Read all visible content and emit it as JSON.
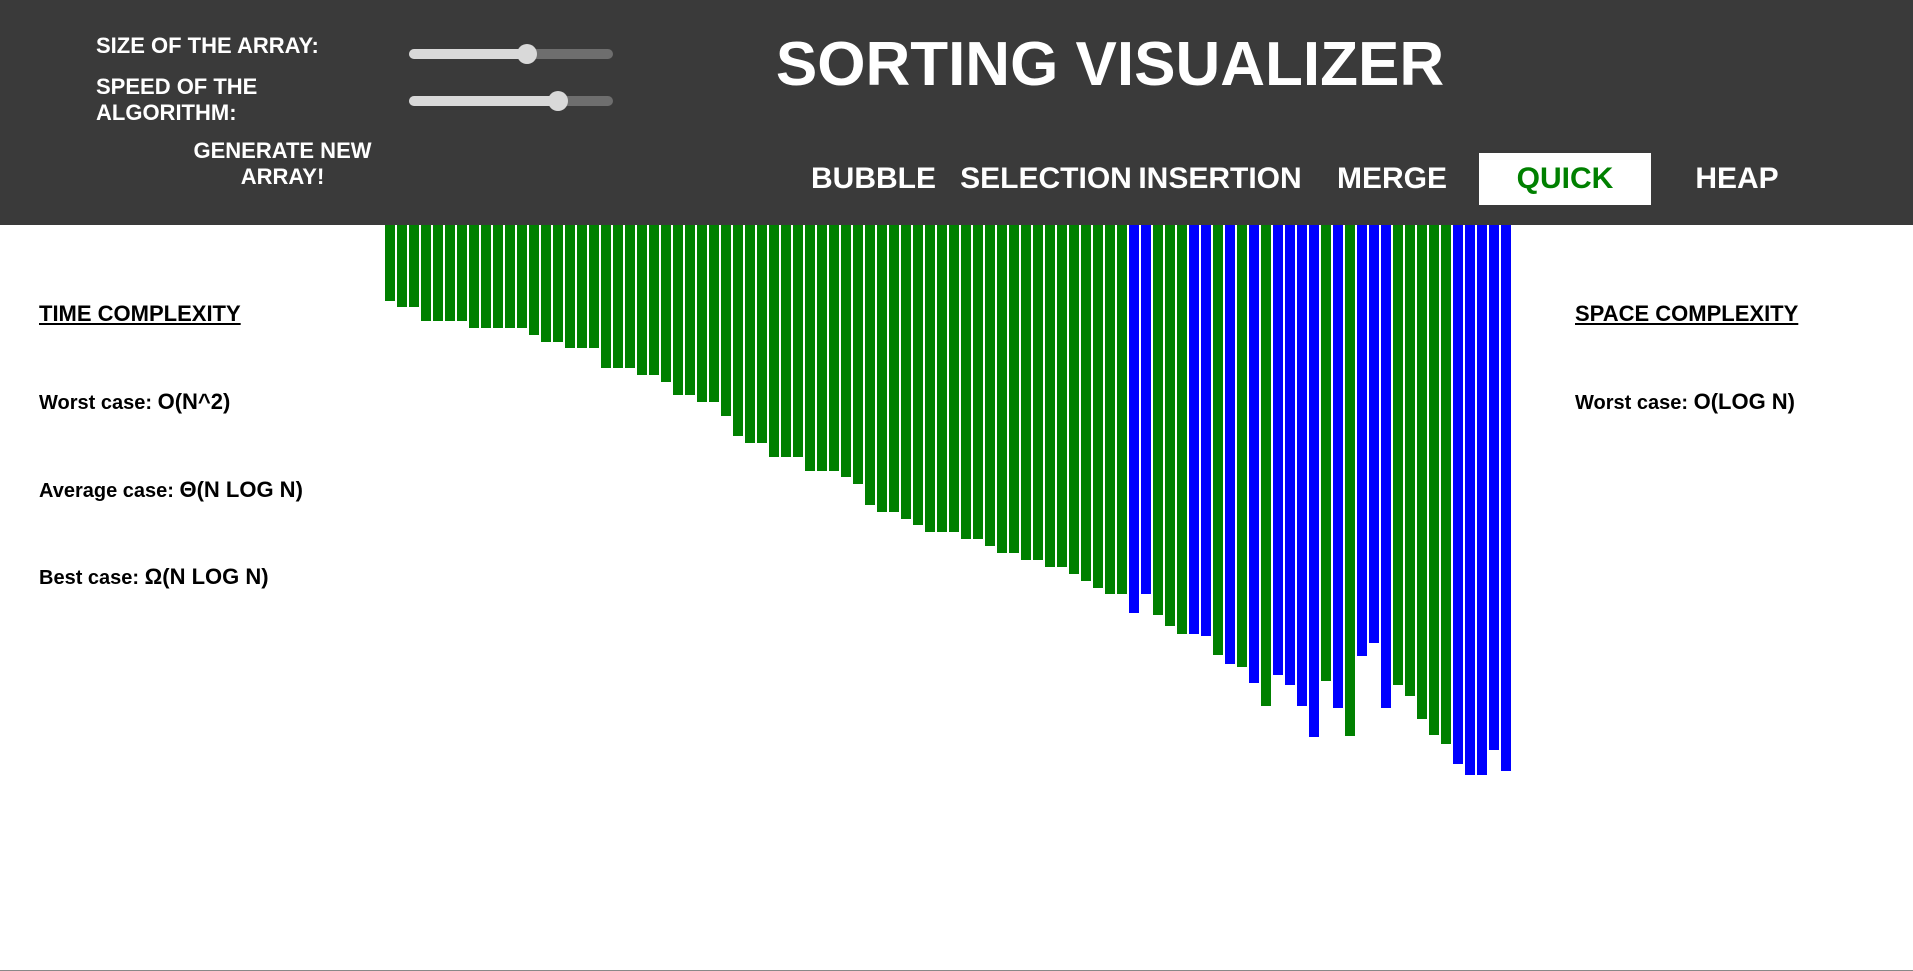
{
  "controls": {
    "size_label": "SIZE OF THE ARRAY:",
    "size_value": 0.58,
    "speed_label_line1": "SPEED OF THE",
    "speed_label_line2": "ALGORITHM:",
    "speed_value": 0.73,
    "generate_line1": "GENERATE NEW",
    "generate_line2": "ARRAY!"
  },
  "title": "SORTING VISUALIZER",
  "algorithms": [
    {
      "label": "BUBBLE",
      "active": false
    },
    {
      "label": "SELECTION",
      "active": false
    },
    {
      "label": "INSERTION",
      "active": false
    },
    {
      "label": "MERGE",
      "active": false
    },
    {
      "label": "QUICK",
      "active": true
    },
    {
      "label": "HEAP",
      "active": false
    }
  ],
  "colors": {
    "header_bg": "#3a3a3a",
    "active_text": "#008000",
    "sorted_bar": "#008000",
    "unsorted_bar": "#0000ff"
  },
  "time_complexity": {
    "heading": "TIME COMPLEXITY",
    "worst_label": "Worst case:",
    "worst_value": "O(N^2)",
    "average_label": "Average case:",
    "average_value": "Θ(N LOG N)",
    "best_label": "Best case:",
    "best_value": "Ω(N LOG N)"
  },
  "space_complexity": {
    "heading": "SPACE COMPLEXITY",
    "worst_label": "Worst case:",
    "worst_value": "O(LOG N)"
  },
  "array": {
    "values": [
      76,
      82,
      82,
      96,
      96,
      96,
      96,
      103,
      103,
      103,
      103,
      103,
      110,
      117,
      117,
      123,
      123,
      123,
      143,
      143,
      143,
      150,
      150,
      157,
      170,
      170,
      177,
      177,
      191,
      211,
      218,
      218,
      232,
      232,
      232,
      246,
      246,
      246,
      252,
      259,
      280,
      287,
      287,
      294,
      300,
      307,
      307,
      307,
      314,
      314,
      321,
      328,
      328,
      335,
      335,
      342,
      342,
      349,
      356,
      363,
      369,
      369,
      388,
      369,
      390,
      401,
      409,
      409,
      411,
      430,
      439,
      442,
      458,
      481,
      450,
      460,
      481,
      512,
      456,
      483,
      511,
      431,
      418,
      483,
      460,
      471,
      494,
      510,
      519,
      539,
      550,
      550,
      525,
      546
    ],
    "states": [
      "g",
      "g",
      "g",
      "g",
      "g",
      "g",
      "g",
      "g",
      "g",
      "g",
      "g",
      "g",
      "g",
      "g",
      "g",
      "g",
      "g",
      "g",
      "g",
      "g",
      "g",
      "g",
      "g",
      "g",
      "g",
      "g",
      "g",
      "g",
      "g",
      "g",
      "g",
      "g",
      "g",
      "g",
      "g",
      "g",
      "g",
      "g",
      "g",
      "g",
      "g",
      "g",
      "g",
      "g",
      "g",
      "g",
      "g",
      "g",
      "g",
      "g",
      "g",
      "g",
      "g",
      "g",
      "g",
      "g",
      "g",
      "g",
      "g",
      "g",
      "g",
      "g",
      "b",
      "b",
      "g",
      "g",
      "g",
      "b",
      "b",
      "g",
      "b",
      "g",
      "b",
      "g",
      "b",
      "b",
      "b",
      "b",
      "g",
      "b",
      "g",
      "b",
      "b",
      "b",
      "g",
      "g",
      "g",
      "g",
      "g",
      "b",
      "b",
      "b",
      "b",
      "b"
    ]
  }
}
